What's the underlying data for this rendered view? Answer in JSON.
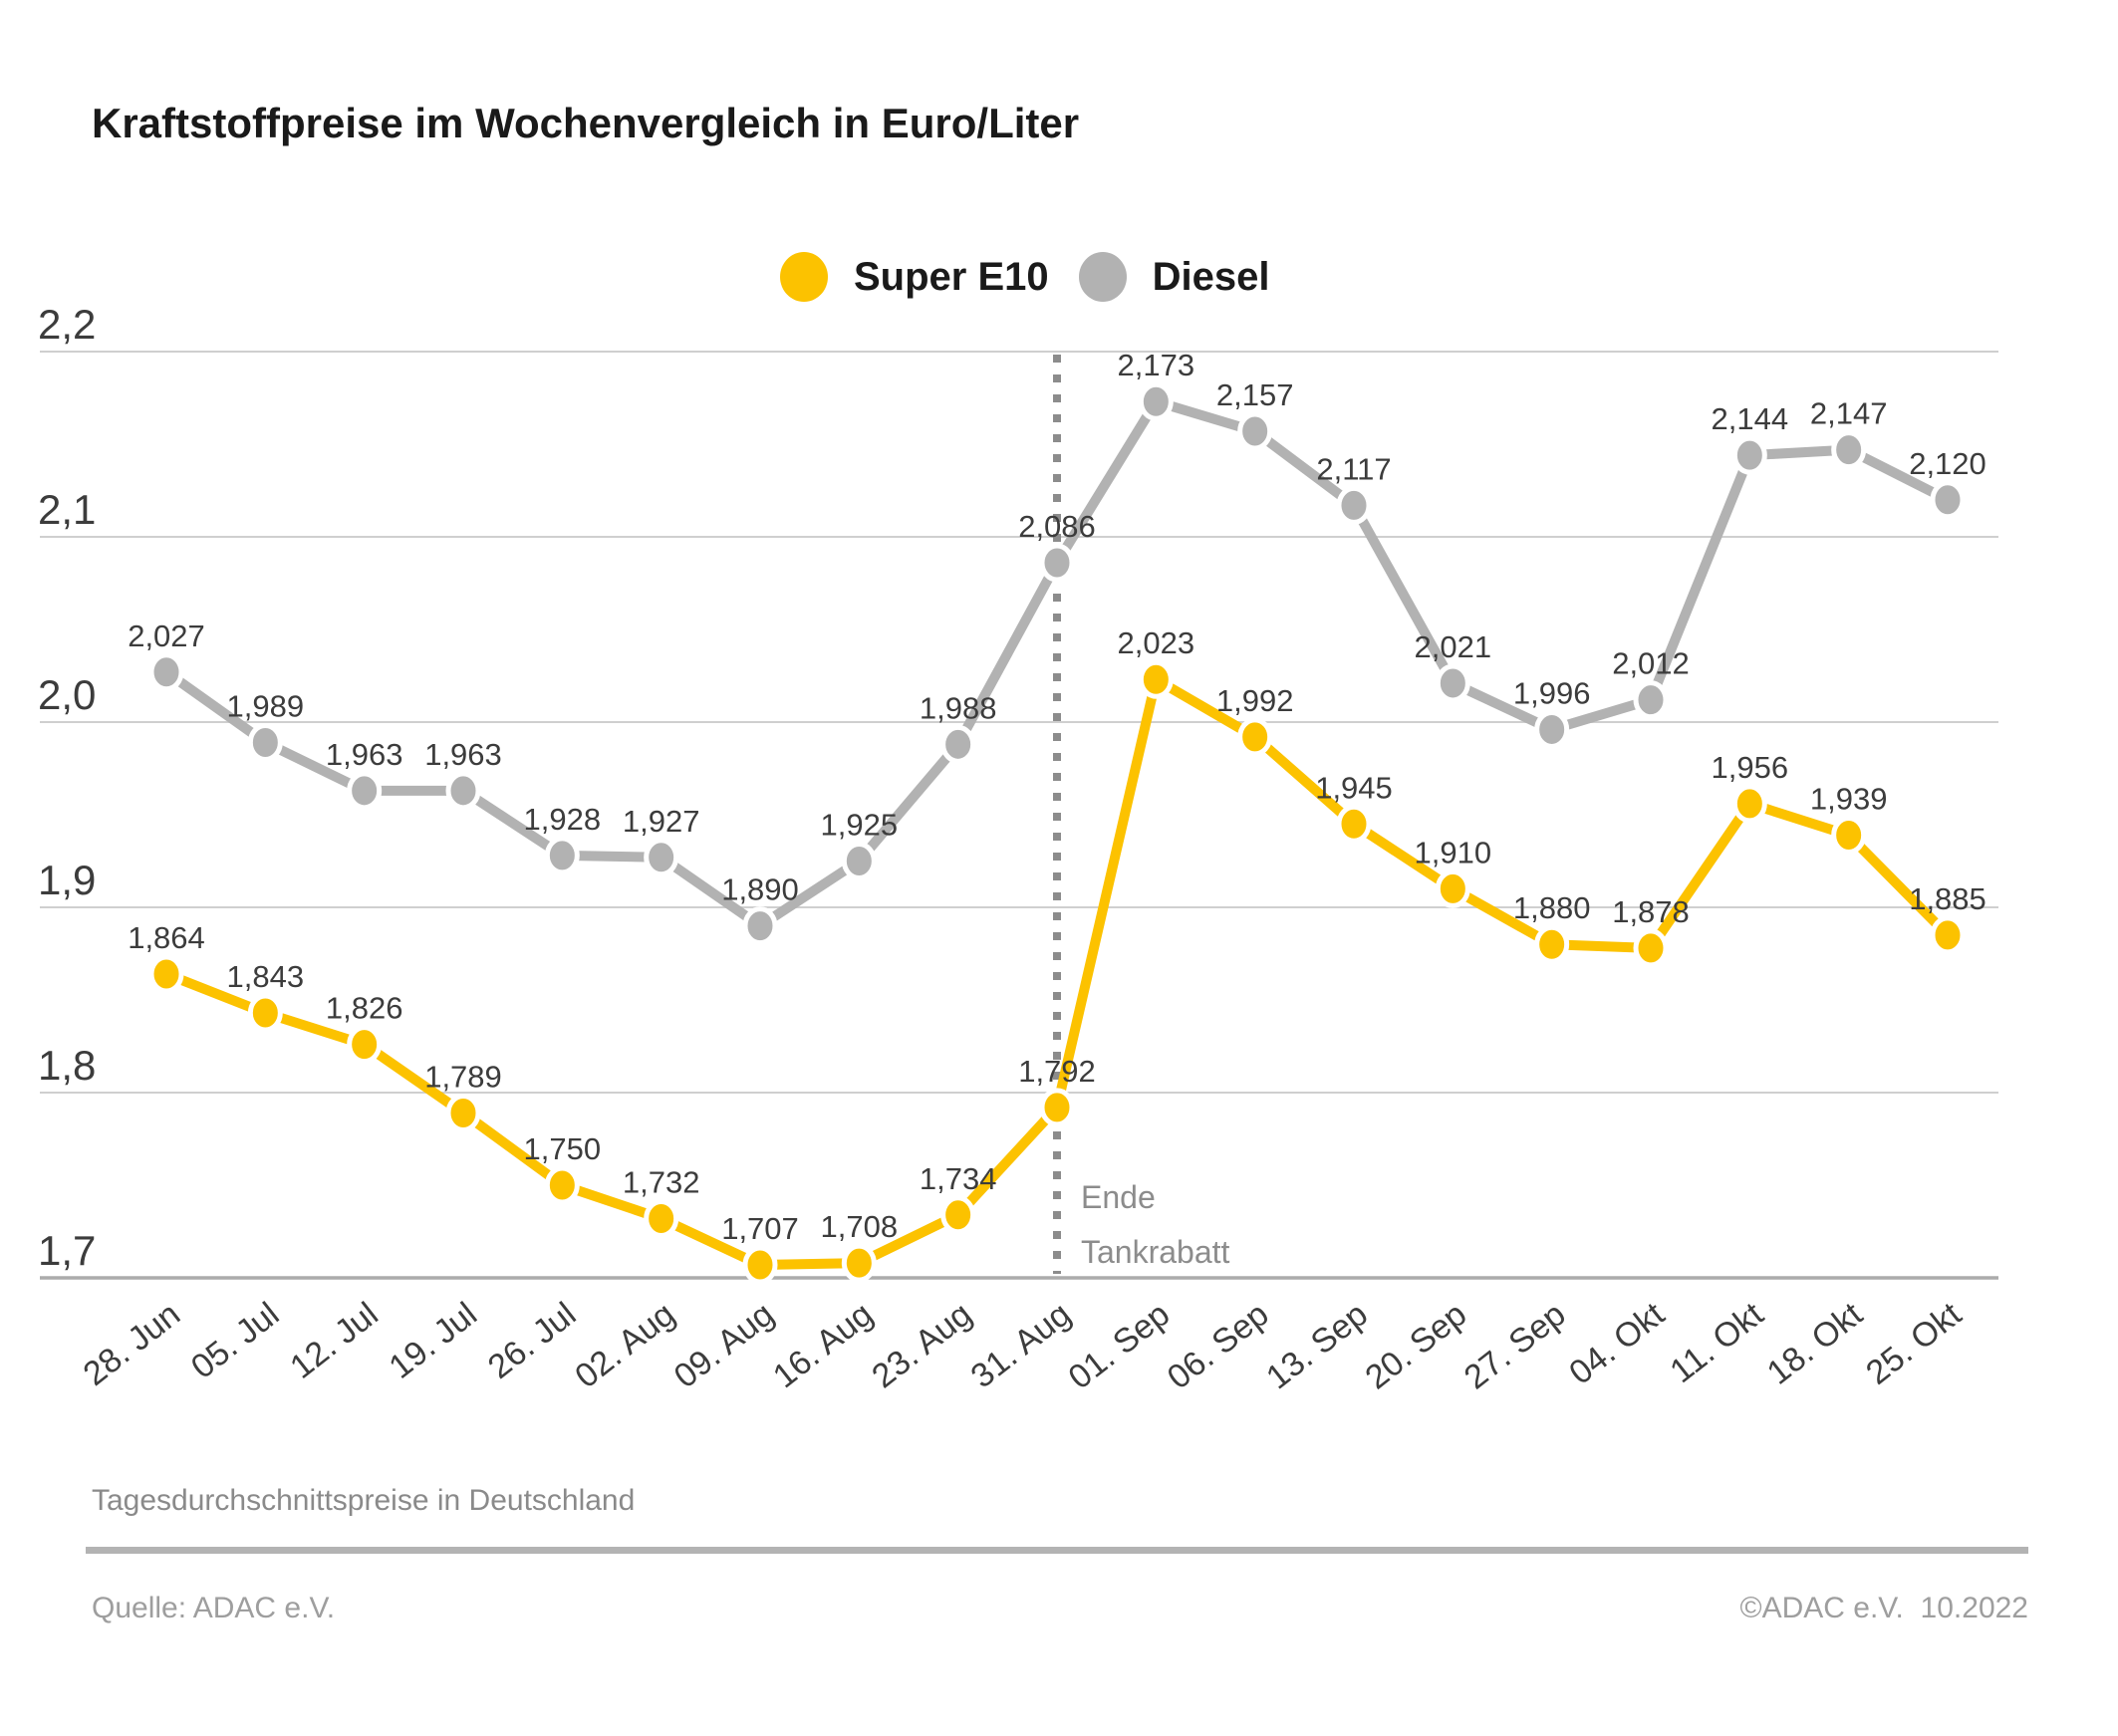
{
  "title": "Kraftstoffpreise im Wochenvergleich in Euro/Liter",
  "legend": [
    {
      "label": "Super E10",
      "color": "#FCC200"
    },
    {
      "label": "Diesel",
      "color": "#B2B2B2"
    }
  ],
  "annotation": {
    "line1": "Ende",
    "line2": "Tankrabatt"
  },
  "footnote": "Tagesdurchschnittspreise in Deutschland",
  "source": "Quelle: ADAC e.V.",
  "copyright": "©ADAC e.V.  10.2022",
  "colors": {
    "super_e10": "#FCC200",
    "diesel": "#B2B2B2",
    "grid": "#CFCFCF",
    "axis": "#ABABAB",
    "data_label": "#3C3C3C",
    "annotation": "#8C8C8C"
  },
  "chart_data": {
    "type": "line",
    "title": "Kraftstoffpreise im Wochenvergleich in Euro/Liter",
    "xlabel": "",
    "ylabel": "Euro/Liter",
    "ylim": [
      1.7,
      2.2
    ],
    "grid": true,
    "legend_position": "top-center",
    "annotation_index": 9,
    "annotation_text": "Ende Tankrabatt",
    "categories": [
      "28. Jun",
      "05. Jul",
      "12. Jul",
      "19. Jul",
      "26. Jul",
      "02. Aug",
      "09. Aug",
      "16. Aug",
      "23. Aug",
      "31. Aug",
      "01. Sep",
      "06. Sep",
      "13. Sep",
      "20. Sep",
      "27. Sep",
      "04. Okt",
      "11. Okt",
      "18. Okt",
      "25. Okt"
    ],
    "y_ticks": [
      {
        "value": 2.2,
        "label": "2,2"
      },
      {
        "value": 2.1,
        "label": "2,1"
      },
      {
        "value": 2.0,
        "label": "2,0"
      },
      {
        "value": 1.9,
        "label": "1,9"
      },
      {
        "value": 1.8,
        "label": "1,8"
      },
      {
        "value": 1.7,
        "label": "1,7"
      }
    ],
    "series": [
      {
        "name": "Diesel",
        "color": "#B2B2B2",
        "values": [
          2.027,
          1.989,
          1.963,
          1.963,
          1.928,
          1.927,
          1.89,
          1.925,
          1.988,
          2.086,
          2.173,
          2.157,
          2.117,
          2.021,
          1.996,
          2.012,
          2.144,
          2.147,
          2.12
        ],
        "labels": [
          "2,027",
          "1,989",
          "1,963",
          "1,963",
          "1,928",
          "1,927",
          "1,890",
          "1,925",
          "1,988",
          "2,086",
          "2,173",
          "2,157",
          "2,117",
          "2,021",
          "1,996",
          "2,012",
          "2,144",
          "2,147",
          "2,120"
        ]
      },
      {
        "name": "Super E10",
        "color": "#FCC200",
        "values": [
          1.864,
          1.843,
          1.826,
          1.789,
          1.75,
          1.732,
          1.707,
          1.708,
          1.734,
          1.792,
          2.023,
          1.992,
          1.945,
          1.91,
          1.88,
          1.878,
          1.956,
          1.939,
          1.885
        ],
        "labels": [
          "1,864",
          "1,843",
          "1,826",
          "1,789",
          "1,750",
          "1,732",
          "1,707",
          "1,708",
          "1,734",
          "1,792",
          "2,023",
          "1,992",
          "1,945",
          "1,910",
          "1,880",
          "1,878",
          "1,956",
          "1,939",
          "1,885"
        ]
      }
    ]
  }
}
